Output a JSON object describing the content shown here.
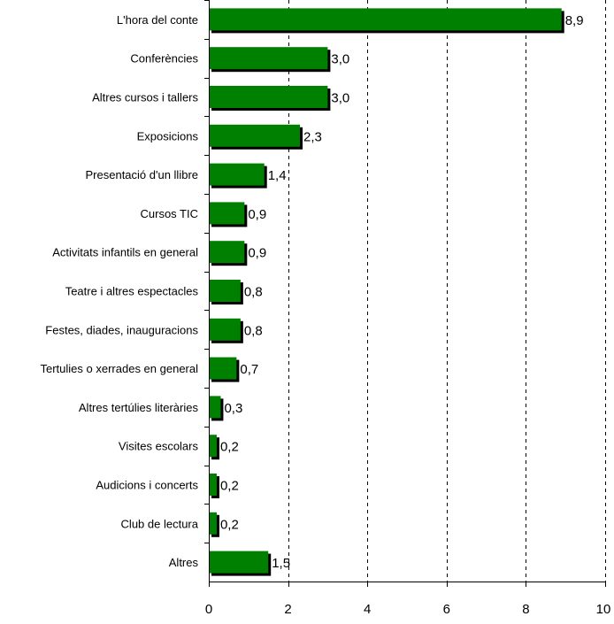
{
  "chart_data": {
    "type": "bar",
    "orientation": "horizontal",
    "categories": [
      "L'hora del conte",
      "Conferències",
      "Altres cursos i tallers",
      "Exposicions",
      "Presentació d'un llibre",
      "Cursos TIC",
      "Activitats infantils en general",
      "Teatre i altres espectacles",
      "Festes, diades, inauguracions",
      "Tertulies o xerrades en general",
      "Altres tertúlies literàries",
      "Visites escolars",
      "Audicions i concerts",
      "Club de lectura",
      "Altres"
    ],
    "values": [
      8.9,
      3.0,
      3.0,
      2.3,
      1.4,
      0.9,
      0.9,
      0.8,
      0.8,
      0.7,
      0.3,
      0.2,
      0.2,
      0.2,
      1.5
    ],
    "value_labels": [
      "8,9",
      "3,0",
      "3,0",
      "2,3",
      "1,4",
      "0,9",
      "0,9",
      "0,8",
      "0,8",
      "0,7",
      "0,3",
      "0,2",
      "0,2",
      "0,2",
      "1,5"
    ],
    "xlim": [
      0,
      10
    ],
    "x_ticks": [
      0,
      2,
      4,
      6,
      8,
      10
    ],
    "title": "",
    "xlabel": "",
    "ylabel": "",
    "grid": "vertical dashed",
    "legend": "none",
    "colors": {
      "bar": "#008000",
      "bar_shadow": "#000000",
      "axis": "#000000",
      "grid": "#000000"
    }
  }
}
